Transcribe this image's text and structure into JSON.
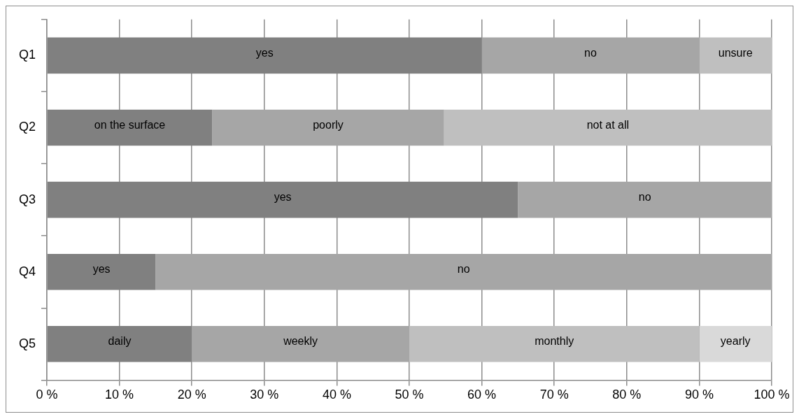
{
  "chart_data": {
    "type": "bar",
    "orientation": "horizontal",
    "stacked": true,
    "categories": [
      "Q1",
      "Q2",
      "Q3",
      "Q4",
      "Q5"
    ],
    "series": [
      {
        "colors": [
          "#808080",
          "#808080",
          "#808080",
          "#808080",
          "#808080"
        ],
        "values": [
          60,
          22.8,
          65,
          15,
          20
        ],
        "value_labels": [
          "yes",
          "on the surface",
          "yes",
          "yes",
          "daily"
        ]
      },
      {
        "colors": [
          "#a6a6a6",
          "#a6a6a6",
          "#a6a6a6",
          "#a6a6a6",
          "#a6a6a6"
        ],
        "values": [
          30,
          32,
          35,
          85,
          30
        ],
        "value_labels": [
          "no",
          "poorly",
          "no",
          "no",
          "weekly"
        ]
      },
      {
        "colors": [
          "#bfbfbf",
          "#bfbfbf",
          null,
          null,
          "#bfbfbf"
        ],
        "values": [
          10,
          45.2,
          null,
          null,
          40
        ],
        "value_labels": [
          "unsure",
          "not at all",
          null,
          null,
          "monthly"
        ]
      },
      {
        "colors": [
          null,
          null,
          null,
          null,
          "#d9d9d9"
        ],
        "values": [
          null,
          null,
          null,
          null,
          10
        ],
        "value_labels": [
          null,
          null,
          null,
          null,
          "yearly"
        ]
      }
    ],
    "xlim": [
      0,
      100
    ],
    "xticks": [
      {
        "value": 0,
        "label": "0 %"
      },
      {
        "value": 10,
        "label": "10 %"
      },
      {
        "value": 20,
        "label": "20 %"
      },
      {
        "value": 30,
        "label": "30 %"
      },
      {
        "value": 40,
        "label": "40 %"
      },
      {
        "value": 50,
        "label": "50 %"
      },
      {
        "value": 60,
        "label": "60 %"
      },
      {
        "value": 70,
        "label": "70 %"
      },
      {
        "value": 80,
        "label": "80 %"
      },
      {
        "value": 90,
        "label": "90 %"
      },
      {
        "value": 100,
        "label": "100 %"
      }
    ],
    "grid": "x"
  }
}
